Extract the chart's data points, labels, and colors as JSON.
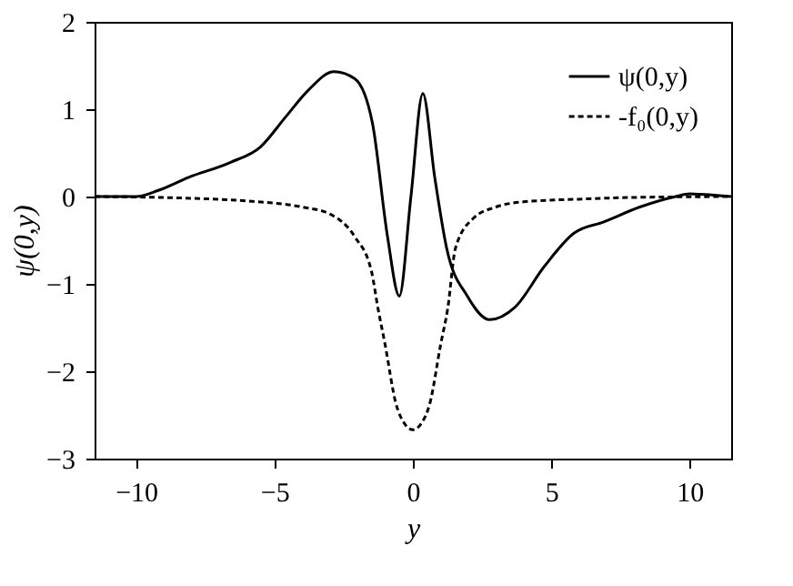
{
  "chart_data": {
    "type": "line",
    "xlabel": "y",
    "ylabel": "ψ(0,y)",
    "xlim": [
      -11.5,
      11.5
    ],
    "ylim": [
      -3,
      2
    ],
    "xticks": [
      -10,
      -5,
      0,
      5,
      10
    ],
    "yticks": [
      -3,
      -2,
      -1,
      0,
      1,
      2
    ],
    "grid": false,
    "legend": "top right",
    "marker": "none",
    "series": [
      {
        "name": "ψ(0,y)",
        "color": "#000000",
        "line_style": "solid",
        "x": [
          -11.5,
          -10,
          -9.2,
          -8.1,
          -6.6,
          -5.5,
          -4.6,
          -3.8,
          -2.85,
          -2.1,
          -1.46,
          -0.92,
          -0.49,
          -0.07,
          0.36,
          0.79,
          1.22,
          1.97,
          2.78,
          3.68,
          4.75,
          5.82,
          6.9,
          8.2,
          9.5,
          10,
          11.5
        ],
        "values": [
          0,
          0,
          0.07,
          0.22,
          0.39,
          0.57,
          0.91,
          1.21,
          1.43,
          1.35,
          0.84,
          -0.45,
          -1.14,
          0,
          1.18,
          0.22,
          -0.59,
          -1.14,
          -1.41,
          -1.27,
          -0.8,
          -0.42,
          -0.29,
          -0.12,
          0,
          0.03,
          0
        ]
      },
      {
        "name": "-f₀(0,y)",
        "color": "#000000",
        "line_style": "dashed",
        "x": [
          -11.5,
          -8,
          -6,
          -4,
          -3,
          -2.1,
          -1.5,
          -1.26,
          -1,
          -0.62,
          -0.3,
          0,
          0.3,
          0.62,
          1,
          1.26,
          1.54,
          2.18,
          3,
          4,
          6,
          8,
          11.5
        ],
        "values": [
          0,
          -0.02,
          -0.05,
          -0.12,
          -0.2,
          -0.46,
          -0.85,
          -1.28,
          -1.7,
          -2.36,
          -2.6,
          -2.67,
          -2.6,
          -2.36,
          -1.7,
          -1.28,
          -0.59,
          -0.25,
          -0.12,
          -0.06,
          -0.03,
          -0.01,
          0
        ]
      }
    ]
  }
}
